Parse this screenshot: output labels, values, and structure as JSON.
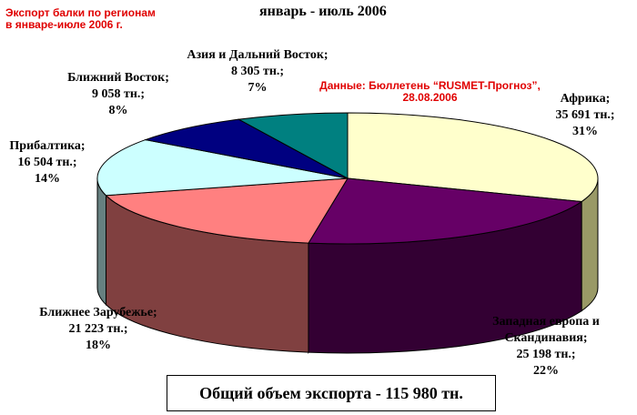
{
  "header": {
    "note_line1": "Экспорт балки по регионам",
    "note_line2": "в январе-июле 2006 г.",
    "title": "январь - июль 2006",
    "source_line1": "Данные: Бюллетень “RUSMET-Прогноз”,",
    "source_line2": "28.08.2006"
  },
  "total_label": "Общий объем экспорта - 115 980 тн.",
  "chart_data": {
    "type": "pie",
    "title": "январь - июль 2006",
    "unit": "тн.",
    "slices": [
      {
        "name": "Африка;",
        "value": 35691,
        "value_label": "35 691 тн.;",
        "percent_label": "31%",
        "color": "#ffffcc",
        "side": "#999966"
      },
      {
        "name": "Западная европа и Скандинавия;",
        "value": 25198,
        "value_label": "25 198 тн.;",
        "percent_label": "22%",
        "color": "#660066",
        "side": "#330033"
      },
      {
        "name": "Ближнее Зарубежье;",
        "value": 21223,
        "value_label": "21 223 тн.;",
        "percent_label": "18%",
        "color": "#ff8080",
        "side": "#804040"
      },
      {
        "name": "Прибалтика;",
        "value": 16504,
        "value_label": "16 504 тн.;",
        "percent_label": "14%",
        "color": "#ccffff",
        "side": "#668080"
      },
      {
        "name": "Ближний Восток;",
        "value": 9058,
        "value_label": "9 058 тн.;",
        "percent_label": "8%",
        "color": "#000080",
        "side": "#000040"
      },
      {
        "name": "Азия и Дальний Восток;",
        "value": 8305,
        "value_label": "8 305 тн.;",
        "percent_label": "7%",
        "color": "#008080",
        "side": "#004040"
      }
    ]
  }
}
